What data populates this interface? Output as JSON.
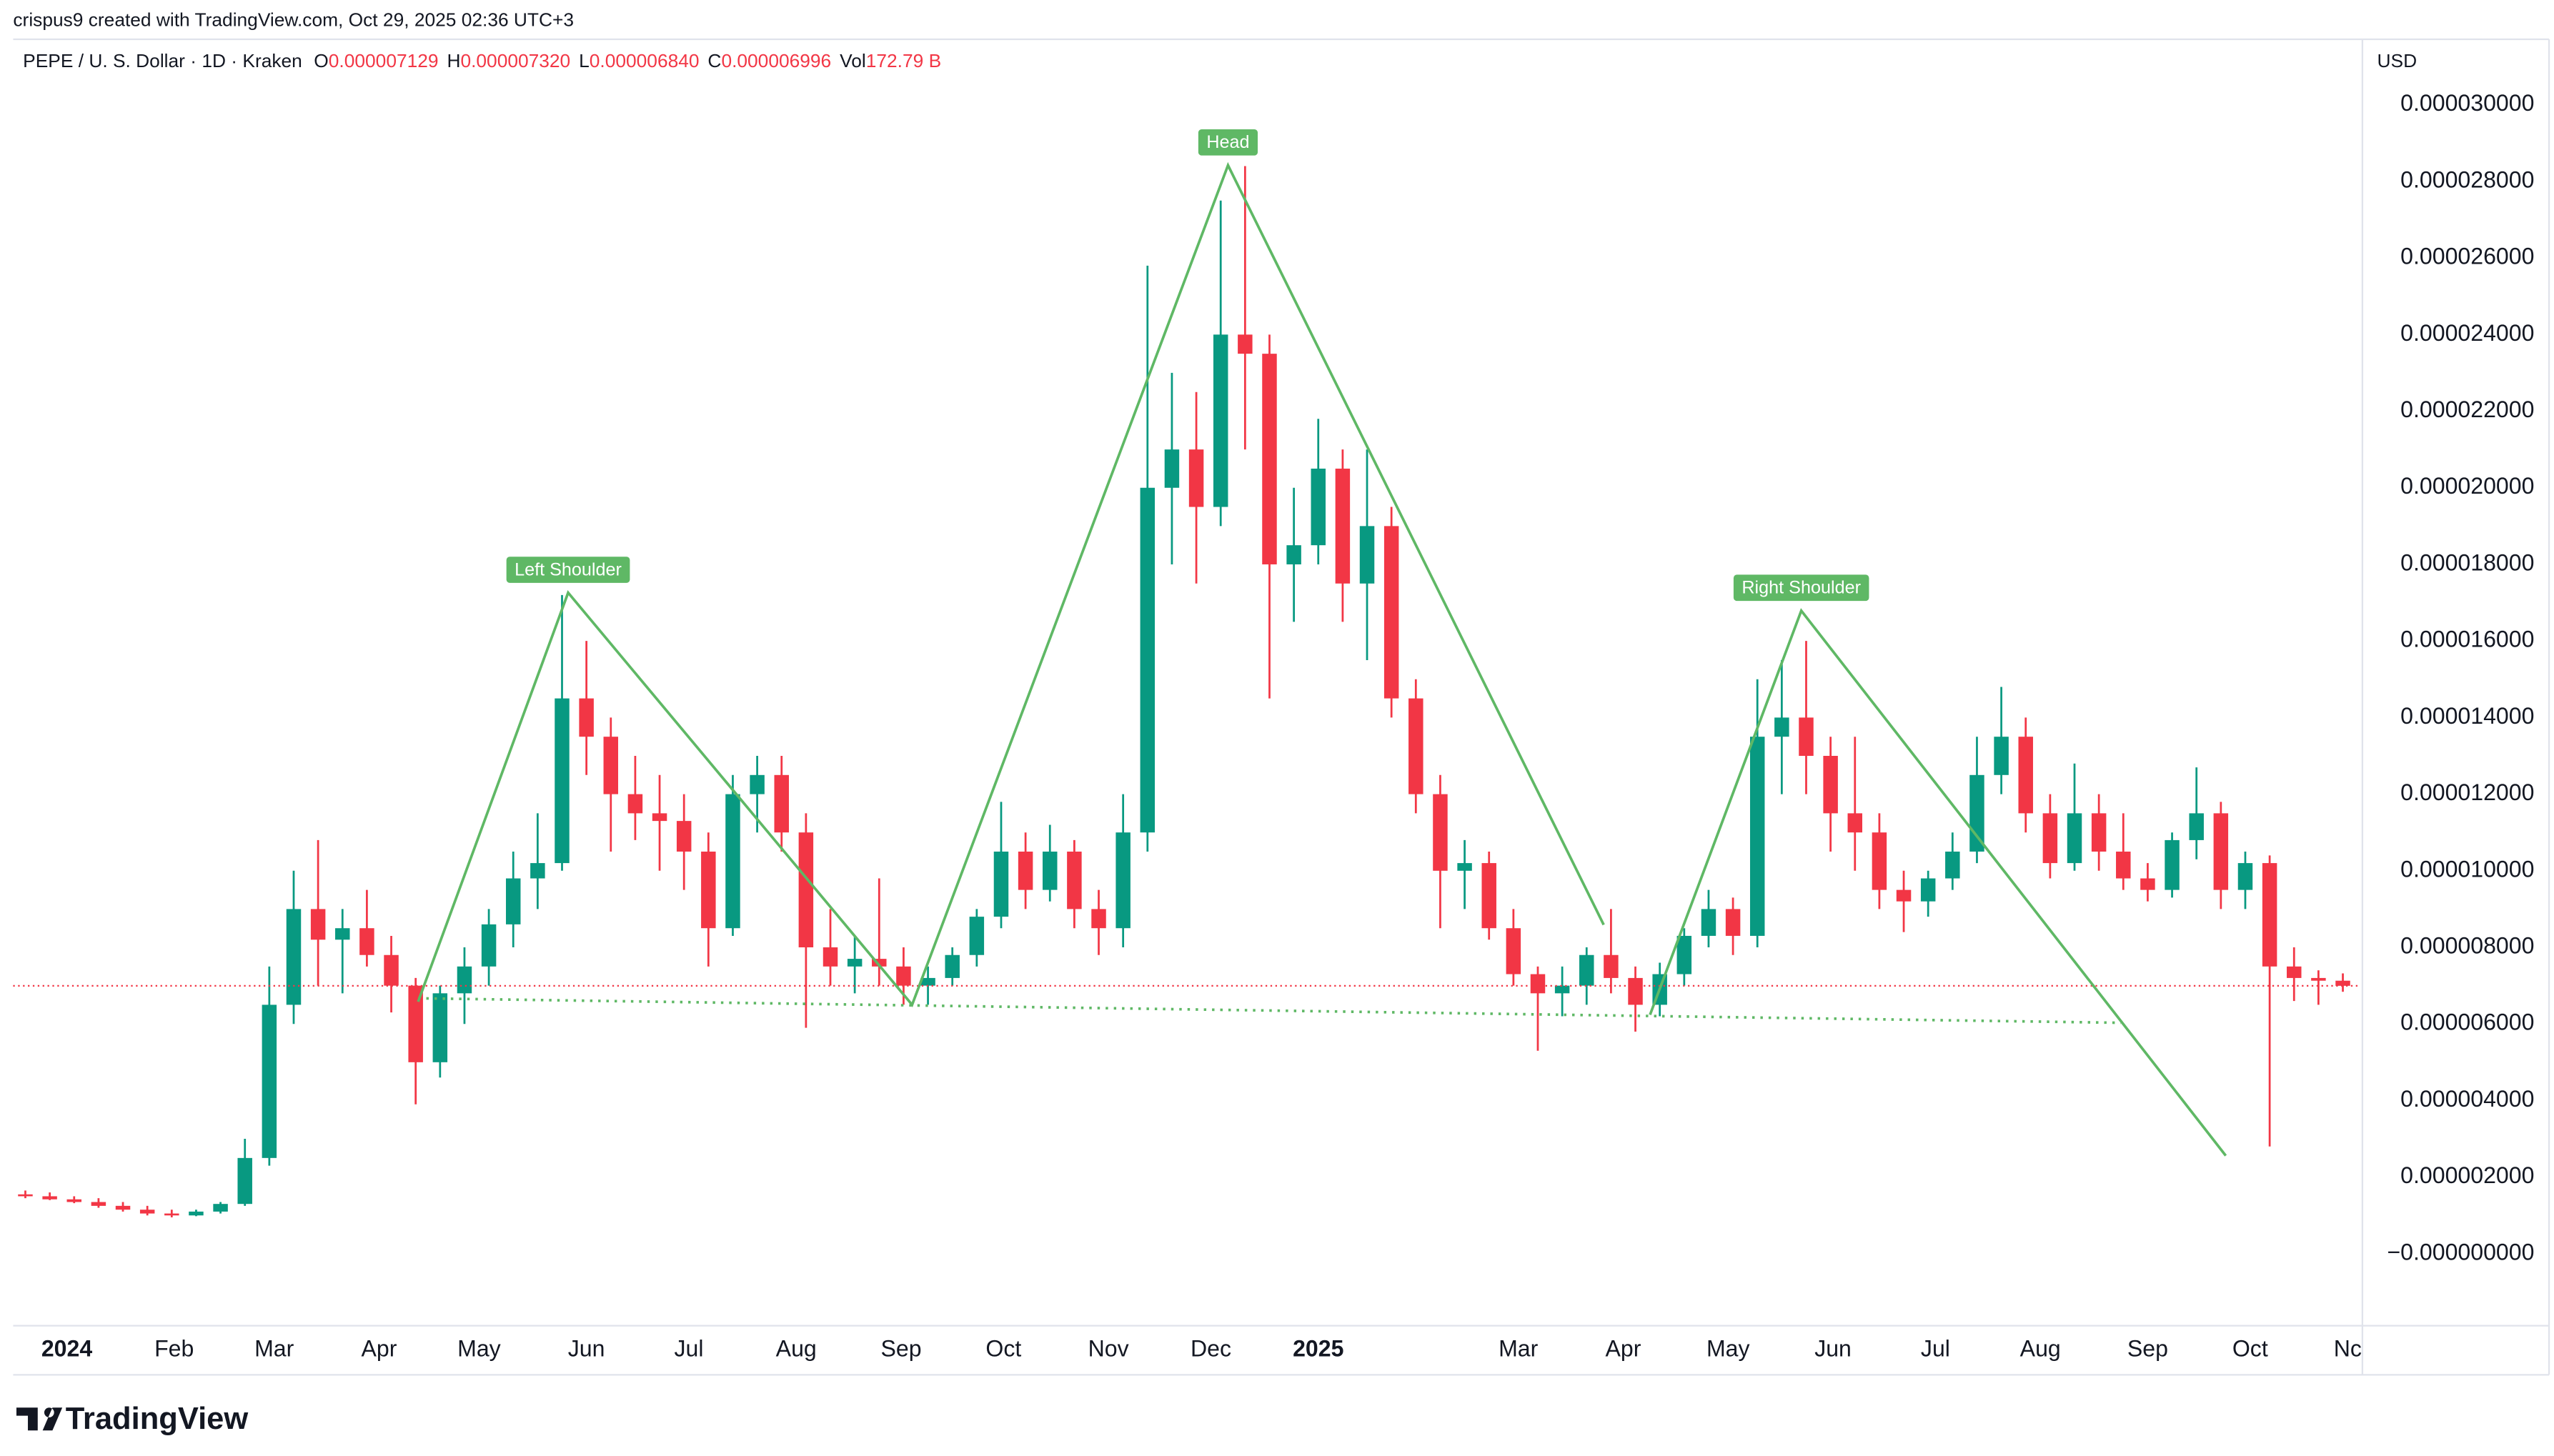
{
  "chart_data": {
    "type": "candlestick",
    "watermark": "crispus9 created with TradingView.com, Oct 29, 2025 02:36 UTC+3",
    "legend": {
      "symbol": "PEPE / U. S. Dollar · 1D · Kraken",
      "open_label": "O",
      "open": "0.000007129",
      "high_label": "H",
      "high": "0.000007320",
      "low_label": "L",
      "low": "0.000006840",
      "close_label": "C",
      "close": "0.000006996",
      "volume_label": "Vol",
      "volume": "172.79 B"
    },
    "currency": "USD",
    "brand": "TradingView",
    "up_color": "#089981",
    "down_color": "#f23645",
    "open": [
      1.55e-06,
      1.5e-06,
      1.42e-06,
      1.35e-06,
      1.25e-06,
      1.15e-06,
      1.05e-06,
      1e-06,
      1.1e-06,
      1.3e-06,
      2.5e-06,
      6.5e-06,
      9e-06,
      8.2e-06,
      8.5e-06,
      7.8e-06,
      7e-06,
      5e-06,
      6.8e-06,
      7.5e-06,
      8.6e-06,
      9.8e-06,
      1.02e-05,
      1.45e-05,
      1.35e-05,
      1.2e-05,
      1.15e-05,
      1.13e-05,
      1.05e-05,
      8.5e-06,
      1.2e-05,
      1.25e-05,
      1.1e-05,
      8e-06,
      7.5e-06,
      7.7e-06,
      7.5e-06,
      7e-06,
      7.2e-06,
      7.8e-06,
      8.8e-06,
      1.05e-05,
      9.5e-06,
      1.05e-05,
      9e-06,
      8.5e-06,
      1.1e-05,
      2e-05,
      2.1e-05,
      1.95e-05,
      2.4e-05,
      2.35e-05,
      1.8e-05,
      1.85e-05,
      2.05e-05,
      1.75e-05,
      1.9e-05,
      1.45e-05,
      1.2e-05,
      1e-05,
      1.02e-05,
      8.5e-06,
      7.3e-06,
      6.8e-06,
      7e-06,
      7.8e-06,
      7.2e-06,
      6.5e-06,
      7.3e-06,
      8.3e-06,
      9e-06,
      8.3e-06,
      1.35e-05,
      1.4e-05,
      1.3e-05,
      1.15e-05,
      1.1e-05,
      9.5e-06,
      9.2e-06,
      9.8e-06,
      1.05e-05,
      1.25e-05,
      1.35e-05,
      1.15e-05,
      1.02e-05,
      1.15e-05,
      1.05e-05,
      9.8e-06,
      9.5e-06,
      1.08e-05,
      1.15e-05,
      9.5e-06,
      1.02e-05,
      7.5e-06,
      7.2e-06,
      7.129e-06
    ],
    "high": [
      1.65e-06,
      1.6e-06,
      1.5e-06,
      1.45e-06,
      1.35e-06,
      1.25e-06,
      1.15e-06,
      1.15e-06,
      1.35e-06,
      3e-06,
      7.5e-06,
      1e-05,
      1.08e-05,
      9e-06,
      9.5e-06,
      8.3e-06,
      7.2e-06,
      7e-06,
      8e-06,
      9e-06,
      1.05e-05,
      1.15e-05,
      1.72e-05,
      1.6e-05,
      1.4e-05,
      1.3e-05,
      1.25e-05,
      1.2e-05,
      1.1e-05,
      1.25e-05,
      1.3e-05,
      1.3e-05,
      1.15e-05,
      9e-06,
      8.3e-06,
      9.8e-06,
      8e-06,
      7.5e-06,
      8e-06,
      9e-06,
      1.18e-05,
      1.1e-05,
      1.12e-05,
      1.08e-05,
      9.5e-06,
      1.2e-05,
      2.58e-05,
      2.3e-05,
      2.25e-05,
      2.75e-05,
      2.84e-05,
      2.4e-05,
      2e-05,
      2.18e-05,
      2.1e-05,
      2.1e-05,
      1.95e-05,
      1.5e-05,
      1.25e-05,
      1.08e-05,
      1.05e-05,
      9e-06,
      7.5e-06,
      7.5e-06,
      8e-06,
      9e-06,
      7.5e-06,
      7.6e-06,
      8.5e-06,
      9.5e-06,
      9.3e-06,
      1.5e-05,
      1.55e-05,
      1.6e-05,
      1.35e-05,
      1.35e-05,
      1.15e-05,
      1e-05,
      1e-05,
      1.1e-05,
      1.35e-05,
      1.48e-05,
      1.4e-05,
      1.2e-05,
      1.28e-05,
      1.2e-05,
      1.15e-05,
      1.02e-05,
      1.1e-05,
      1.27e-05,
      1.18e-05,
      1.05e-05,
      1.04e-05,
      8e-06,
      7.4e-06,
      7.32e-06
    ],
    "low": [
      1.45e-06,
      1.4e-06,
      1.32e-06,
      1.2e-06,
      1.1e-06,
      1e-06,
      9.5e-07,
      9.8e-07,
      1.05e-06,
      1.25e-06,
      2.3e-06,
      6e-06,
      7e-06,
      6.8e-06,
      7.5e-06,
      6.3e-06,
      3.9e-06,
      4.6e-06,
      6e-06,
      7e-06,
      8e-06,
      9e-06,
      1e-05,
      1.25e-05,
      1.05e-05,
      1.08e-05,
      1e-05,
      9.5e-06,
      7.5e-06,
      8.3e-06,
      1.1e-05,
      1.05e-05,
      5.9e-06,
      7e-06,
      6.8e-06,
      7e-06,
      6.5e-06,
      6.5e-06,
      7e-06,
      7.5e-06,
      8.5e-06,
      9e-06,
      9.2e-06,
      8.5e-06,
      7.8e-06,
      8e-06,
      1.05e-05,
      1.8e-05,
      1.75e-05,
      1.9e-05,
      2.1e-05,
      1.45e-05,
      1.65e-05,
      1.8e-05,
      1.65e-05,
      1.55e-05,
      1.4e-05,
      1.15e-05,
      8.5e-06,
      9e-06,
      8.2e-06,
      7e-06,
      5.3e-06,
      6.2e-06,
      6.5e-06,
      6.8e-06,
      5.8e-06,
      6.2e-06,
      7e-06,
      8e-06,
      7.8e-06,
      8e-06,
      1.2e-05,
      1.2e-05,
      1.05e-05,
      1e-05,
      9e-06,
      8.4e-06,
      8.8e-06,
      9.5e-06,
      1.02e-05,
      1.2e-05,
      1.1e-05,
      9.8e-06,
      1e-05,
      1e-05,
      9.5e-06,
      9.2e-06,
      9.3e-06,
      1.03e-05,
      9e-06,
      9e-06,
      2.8e-06,
      6.6e-06,
      6.5e-06,
      6.84e-06
    ],
    "close": [
      1.5e-06,
      1.42e-06,
      1.35e-06,
      1.25e-06,
      1.15e-06,
      1.05e-06,
      1e-06,
      1.1e-06,
      1.3e-06,
      2.5e-06,
      6.5e-06,
      9e-06,
      8.2e-06,
      8.5e-06,
      7.8e-06,
      7e-06,
      5e-06,
      6.8e-06,
      7.5e-06,
      8.6e-06,
      9.8e-06,
      1.02e-05,
      1.45e-05,
      1.35e-05,
      1.2e-05,
      1.15e-05,
      1.13e-05,
      1.05e-05,
      8.5e-06,
      1.2e-05,
      1.25e-05,
      1.1e-05,
      8e-06,
      7.5e-06,
      7.7e-06,
      7.5e-06,
      7e-06,
      7.2e-06,
      7.8e-06,
      8.8e-06,
      1.05e-05,
      9.5e-06,
      1.05e-05,
      9e-06,
      8.5e-06,
      1.1e-05,
      2e-05,
      2.1e-05,
      1.95e-05,
      2.4e-05,
      2.35e-05,
      1.8e-05,
      1.85e-05,
      2.05e-05,
      1.75e-05,
      1.9e-05,
      1.45e-05,
      1.2e-05,
      1e-05,
      1.02e-05,
      8.5e-06,
      7.3e-06,
      6.8e-06,
      7e-06,
      7.8e-06,
      7.2e-06,
      6.5e-06,
      7.3e-06,
      8.3e-06,
      9e-06,
      8.3e-06,
      1.35e-05,
      1.4e-05,
      1.3e-05,
      1.15e-05,
      1.1e-05,
      9.5e-06,
      9.2e-06,
      9.8e-06,
      1.05e-05,
      1.25e-05,
      1.35e-05,
      1.15e-05,
      1.02e-05,
      1.15e-05,
      1.05e-05,
      9.8e-06,
      9.5e-06,
      1.08e-05,
      1.15e-05,
      9.5e-06,
      1.02e-05,
      7.5e-06,
      7.2e-06,
      7.129e-06,
      6.996e-06
    ],
    "xlim": [
      -0.5,
      95.6
    ],
    "xticks": [
      {
        "value": 1.7,
        "label": "2024"
      },
      {
        "value": 6.1,
        "label": "Feb"
      },
      {
        "value": 10.2,
        "label": "Mar"
      },
      {
        "value": 14.5,
        "label": "Apr"
      },
      {
        "value": 18.6,
        "label": "May"
      },
      {
        "value": 23.0,
        "label": "Jun"
      },
      {
        "value": 27.2,
        "label": "Jul"
      },
      {
        "value": 31.6,
        "label": "Aug"
      },
      {
        "value": 35.9,
        "label": "Sep"
      },
      {
        "value": 40.1,
        "label": "Oct"
      },
      {
        "value": 44.4,
        "label": "Nov"
      },
      {
        "value": 48.6,
        "label": "Dec"
      },
      {
        "value": 53.0,
        "label": "2025"
      },
      {
        "value": 61.2,
        "label": "Mar"
      },
      {
        "value": 65.5,
        "label": "Apr"
      },
      {
        "value": 69.8,
        "label": "May"
      },
      {
        "value": 74.1,
        "label": "Jun"
      },
      {
        "value": 78.3,
        "label": "Jul"
      },
      {
        "value": 82.6,
        "label": "Aug"
      },
      {
        "value": 87.0,
        "label": "Sep"
      },
      {
        "value": 91.2,
        "label": "Oct"
      },
      {
        "value": 95.2,
        "label": "Nc"
      }
    ],
    "bold_xticks": [
      "2024",
      "2025"
    ],
    "ylim": [
      -1.88e-06,
      3.154e-05
    ],
    "yticks": [
      {
        "value": 0,
        "label": "−0.000000000"
      },
      {
        "value": 2e-06,
        "label": "0.000002000"
      },
      {
        "value": 4e-06,
        "label": "0.000004000"
      },
      {
        "value": 6e-06,
        "label": "0.000006000"
      },
      {
        "value": 8e-06,
        "label": "0.000008000"
      },
      {
        "value": 1e-05,
        "label": "0.000010000"
      },
      {
        "value": 1.2e-05,
        "label": "0.000012000"
      },
      {
        "value": 1.4e-05,
        "label": "0.000014000"
      },
      {
        "value": 1.6e-05,
        "label": "0.000016000"
      },
      {
        "value": 1.8e-05,
        "label": "0.000018000"
      },
      {
        "value": 2e-05,
        "label": "0.000020000"
      },
      {
        "value": 2.2e-05,
        "label": "0.000022000"
      },
      {
        "value": 2.4e-05,
        "label": "0.000024000"
      },
      {
        "value": 2.6e-05,
        "label": "0.000026000"
      },
      {
        "value": 2.8e-05,
        "label": "0.000028000"
      },
      {
        "value": 3e-05,
        "label": "0.000030000"
      }
    ],
    "grid": false,
    "pattern": {
      "color": "#5fb865",
      "x": [
        16.1,
        22.25,
        36.35,
        49.3,
        64.7,
        66.6,
        72.8,
        90.2
      ],
      "y": [
        6.58e-06,
        1.726e-05,
        6.5e-06,
        2.842e-05,
        8.59e-06,
        6.24e-06,
        1.679e-05,
        2.56e-06
      ],
      "labels": [
        "Left Shoulder",
        "Head",
        "Right Shoulder"
      ],
      "neckline_x": [
        16.1,
        85.9
      ],
      "neckline_y": [
        6.67e-06,
        6.03e-06
      ]
    }
  }
}
